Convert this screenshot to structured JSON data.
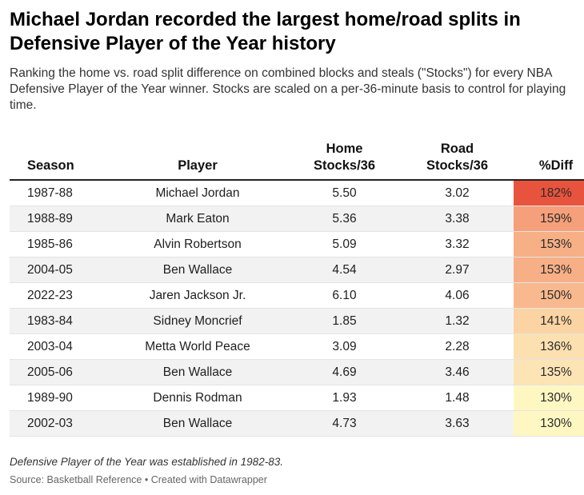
{
  "title": "Michael Jordan recorded the largest home/road splits in Defensive Player of the Year history",
  "subtitle": "Ranking the home vs. road split difference on combined blocks and steals (\"Stocks\") for every NBA Defensive Player of the Year winner. Stocks are scaled on a per-36-minute basis to control for playing time.",
  "notes": "Defensive Player of the Year was established in 1982-83.",
  "source": "Source: Basketball Reference • Created with Datawrapper",
  "chart_data": {
    "type": "table",
    "columns": [
      {
        "line1": "",
        "line2": "Season"
      },
      {
        "line1": "",
        "line2": "Player"
      },
      {
        "line1": "Home",
        "line2": "Stocks/36"
      },
      {
        "line1": "Road",
        "line2": "Stocks/36"
      },
      {
        "line1": "",
        "line2": "%Diff"
      }
    ],
    "rows": [
      {
        "season": "1987-88",
        "player": "Michael Jordan",
        "home": "5.50",
        "road": "3.02",
        "diff": "182%",
        "diff_value": 182,
        "color": "#e8533d"
      },
      {
        "season": "1988-89",
        "player": "Mark Eaton",
        "home": "5.36",
        "road": "3.38",
        "diff": "159%",
        "diff_value": 159,
        "color": "#f5a07a"
      },
      {
        "season": "1985-86",
        "player": "Alvin Robertson",
        "home": "5.09",
        "road": "3.32",
        "diff": "153%",
        "diff_value": 153,
        "color": "#f7af86"
      },
      {
        "season": "2004-05",
        "player": "Ben Wallace",
        "home": "4.54",
        "road": "2.97",
        "diff": "153%",
        "diff_value": 153,
        "color": "#f7af86"
      },
      {
        "season": "2022-23",
        "player": "Jaren Jackson Jr.",
        "home": "6.10",
        "road": "4.06",
        "diff": "150%",
        "diff_value": 150,
        "color": "#f9b98f"
      },
      {
        "season": "1983-84",
        "player": "Sidney Moncrief",
        "home": "1.85",
        "road": "1.32",
        "diff": "141%",
        "diff_value": 141,
        "color": "#fcd4a3"
      },
      {
        "season": "2003-04",
        "player": "Metta World Peace",
        "home": "3.09",
        "road": "2.28",
        "diff": "136%",
        "diff_value": 136,
        "color": "#fde0b0"
      },
      {
        "season": "2005-06",
        "player": "Ben Wallace",
        "home": "4.69",
        "road": "3.46",
        "diff": "135%",
        "diff_value": 135,
        "color": "#fde4b5"
      },
      {
        "season": "1989-90",
        "player": "Dennis Rodman",
        "home": "1.93",
        "road": "1.48",
        "diff": "130%",
        "diff_value": 130,
        "color": "#fff7c2"
      },
      {
        "season": "2002-03",
        "player": "Ben Wallace",
        "home": "4.73",
        "road": "3.63",
        "diff": "130%",
        "diff_value": 130,
        "color": "#fff7c2"
      }
    ]
  }
}
